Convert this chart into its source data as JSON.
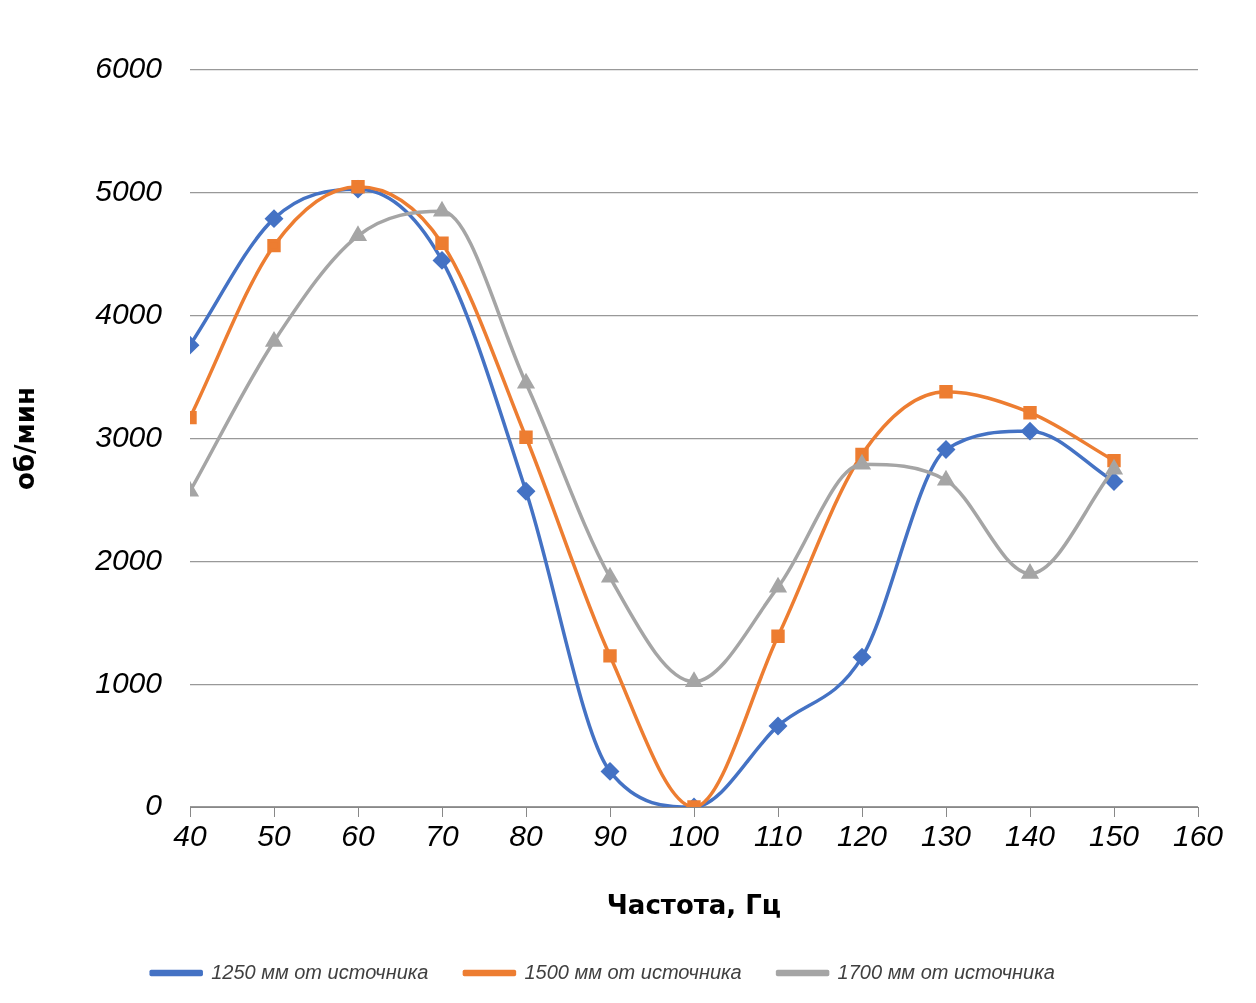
{
  "chart_data": {
    "type": "line",
    "xlabel": "Частота, Гц",
    "ylabel": "об/мин",
    "x": [
      40,
      50,
      60,
      70,
      80,
      90,
      100,
      110,
      120,
      130,
      140,
      150
    ],
    "xlim": [
      40,
      160
    ],
    "xticks": [
      40,
      50,
      60,
      70,
      80,
      90,
      100,
      110,
      120,
      130,
      140,
      150,
      160
    ],
    "ylim": [
      0,
      6000
    ],
    "yticks": [
      0,
      1000,
      2000,
      3000,
      4000,
      5000,
      6000
    ],
    "grid": "y",
    "legend": "bottom",
    "line_style": "solid",
    "series": [
      {
        "name": "1250 мм от источника",
        "color": "#4472c4",
        "marker": "diamond",
        "values": [
          3760,
          4790,
          5030,
          4450,
          2570,
          290,
          0,
          660,
          1220,
          2910,
          3060,
          2650
        ]
      },
      {
        "name": "1500 мм от источника",
        "color": "#ed7d31",
        "marker": "square",
        "values": [
          3170,
          4570,
          5050,
          4590,
          3010,
          1230,
          0,
          1390,
          2870,
          3380,
          3210,
          2820
        ]
      },
      {
        "name": "1700 мм от источника",
        "color": "#a5a5a5",
        "marker": "triangle",
        "values": [
          2570,
          3790,
          4650,
          4850,
          3450,
          1870,
          1020,
          1790,
          2790,
          2660,
          1900,
          2750
        ]
      }
    ]
  }
}
